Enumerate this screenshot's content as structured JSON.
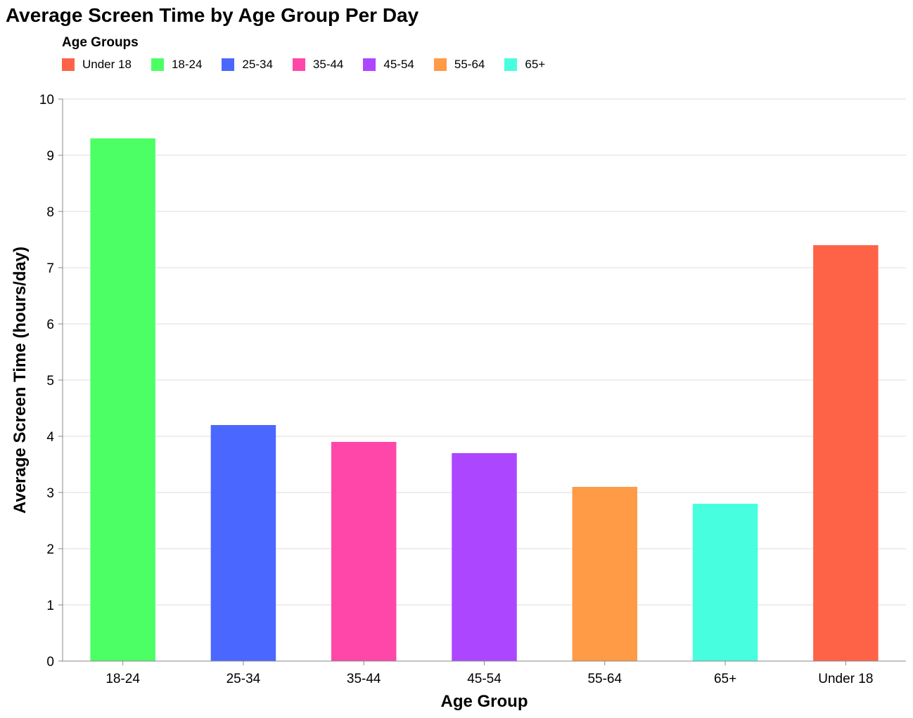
{
  "chart_data": {
    "type": "bar",
    "title": "Average Screen Time by Age Group Per Day",
    "xlabel": "Age Group",
    "ylabel": "Average Screen Time (hours/day)",
    "ylim": [
      0,
      10
    ],
    "yticks": [
      "0",
      "1",
      "2",
      "3",
      "4",
      "5",
      "6",
      "7",
      "8",
      "9",
      "10"
    ],
    "grid": true,
    "legend": {
      "title": "Age Groups",
      "placement": "top-left",
      "items": [
        {
          "label": "Under 18",
          "color": "#ff6347"
        },
        {
          "label": "18-24",
          "color": "#4cff65"
        },
        {
          "label": "25-34",
          "color": "#4a67ff"
        },
        {
          "label": "35-44",
          "color": "#ff47aa"
        },
        {
          "label": "45-54",
          "color": "#ac47ff"
        },
        {
          "label": "55-64",
          "color": "#ff9a47"
        },
        {
          "label": "65+",
          "color": "#47ffdf"
        }
      ]
    },
    "categories": [
      "18-24",
      "25-34",
      "35-44",
      "45-54",
      "55-64",
      "65+",
      "Under 18"
    ],
    "values": [
      9.3,
      4.2,
      3.9,
      3.7,
      3.1,
      2.8,
      7.4
    ],
    "colors": [
      "#4cff65",
      "#4a67ff",
      "#ff47aa",
      "#ac47ff",
      "#ff9a47",
      "#47ffdf",
      "#ff6347"
    ]
  }
}
